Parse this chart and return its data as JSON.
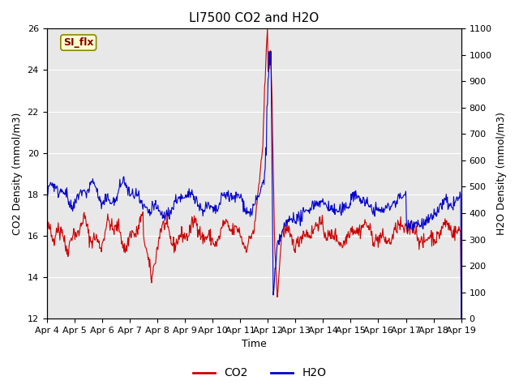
{
  "title": "LI7500 CO2 and H2O",
  "xlabel": "Time",
  "ylabel_left": "CO2 Density (mmol/m3)",
  "ylabel_right": "H2O Density (mmol/m3)",
  "ylim_left": [
    12,
    26
  ],
  "ylim_right": [
    0,
    1100
  ],
  "yticks_left": [
    12,
    14,
    16,
    18,
    20,
    22,
    24,
    26
  ],
  "yticks_right": [
    0,
    100,
    200,
    300,
    400,
    500,
    600,
    700,
    800,
    900,
    1000,
    1100
  ],
  "xtick_labels": [
    "Apr 4",
    "Apr 5",
    "Apr 6",
    "Apr 7",
    "Apr 8",
    "Apr 9",
    "Apr 10",
    "Apr 11",
    "Apr 12",
    "Apr 13",
    "Apr 14",
    "Apr 15",
    "Apr 16",
    "Apr 17",
    "Apr 18",
    "Apr 19"
  ],
  "legend_labels": [
    "CO2",
    "H2O"
  ],
  "legend_colors": [
    "#cc0000",
    "#0000cc"
  ],
  "annotation_text": "SI_flx",
  "annotation_box_facecolor": "#ffffcc",
  "annotation_box_edgecolor": "#888800",
  "annotation_text_color": "#880000",
  "fig_facecolor": "#ffffff",
  "plot_facecolor": "#e8e8e8",
  "grid_color": "#ffffff",
  "co2_color": "#cc0000",
  "h2o_color": "#0000cc",
  "title_fontsize": 11,
  "axis_fontsize": 9,
  "tick_fontsize": 8,
  "linewidth": 0.8
}
